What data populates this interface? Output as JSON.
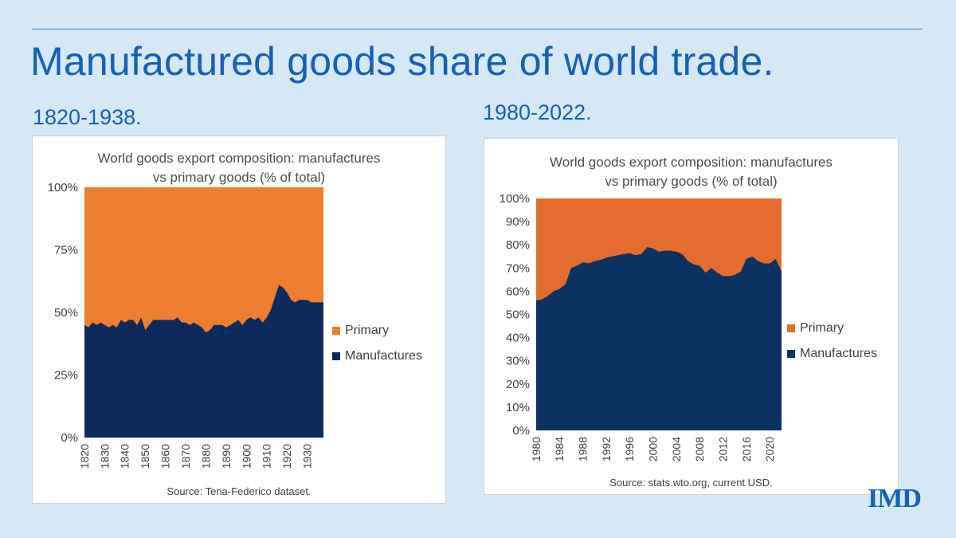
{
  "page": {
    "title": "Manufactured goods share of world trade.",
    "logo": "IMD",
    "colors": {
      "background": "#d6e8f5",
      "accent": "#1560b8"
    }
  },
  "left": {
    "subtitle": "1820-1938."
  },
  "right": {
    "subtitle": "1980-2022."
  },
  "chart_data": [
    {
      "type": "area",
      "stacked": true,
      "title_line1": "World goods export composition: manufactures",
      "title_line2": "vs primary goods (% of total)",
      "source": "Source: Tena-Federico dataset.",
      "x_start": 1820,
      "x_end": 1938,
      "ylim": [
        0,
        100
      ],
      "yticks": [
        0,
        25,
        50,
        75,
        100
      ],
      "ytick_labels": [
        "0%",
        "25%",
        "50%",
        "75%",
        "100%"
      ],
      "xticks": [
        1820,
        1830,
        1840,
        1850,
        1860,
        1870,
        1880,
        1890,
        1900,
        1910,
        1920,
        1930
      ],
      "legend_position": "right",
      "series": [
        {
          "name": "Primary",
          "color": "#ed7d31",
          "complement_of": "Manufactures"
        },
        {
          "name": "Manufactures",
          "color": "#0e2a5c"
        }
      ],
      "x": [
        1820,
        1822,
        1824,
        1826,
        1828,
        1830,
        1832,
        1834,
        1836,
        1838,
        1840,
        1842,
        1844,
        1846,
        1848,
        1850,
        1852,
        1854,
        1856,
        1858,
        1860,
        1862,
        1864,
        1866,
        1868,
        1870,
        1872,
        1874,
        1876,
        1878,
        1880,
        1882,
        1884,
        1886,
        1888,
        1890,
        1892,
        1894,
        1896,
        1898,
        1900,
        1902,
        1904,
        1906,
        1908,
        1910,
        1912,
        1914,
        1916,
        1918,
        1920,
        1922,
        1924,
        1926,
        1928,
        1930,
        1932,
        1934,
        1936,
        1938
      ],
      "manufactures": [
        45,
        44,
        46,
        45,
        46,
        45,
        44,
        45,
        44,
        47,
        46,
        47,
        47,
        45,
        48,
        43,
        45,
        47,
        47,
        47,
        47,
        47,
        47,
        48,
        46,
        46,
        45,
        46,
        45,
        44,
        42,
        43,
        45,
        45,
        45,
        44,
        45,
        46,
        47,
        45,
        47,
        48,
        47,
        48,
        46,
        48,
        51,
        56,
        61,
        60,
        58,
        55,
        54,
        55,
        55,
        55,
        54,
        54,
        54,
        54
      ]
    },
    {
      "type": "area",
      "stacked": true,
      "title_line1": "World goods export composition: manufactures",
      "title_line2": "vs primary goods (% of total)",
      "source": "Source: stats.wto.org, current USD.",
      "x_start": 1980,
      "x_end": 2022,
      "ylim": [
        0,
        100
      ],
      "yticks": [
        0,
        10,
        20,
        30,
        40,
        50,
        60,
        70,
        80,
        90,
        100
      ],
      "ytick_labels": [
        "0%",
        "10%",
        "20%",
        "30%",
        "40%",
        "50%",
        "60%",
        "70%",
        "80%",
        "90%",
        "100%"
      ],
      "xticks": [
        1980,
        1984,
        1988,
        1992,
        1996,
        2000,
        2004,
        2008,
        2012,
        2016,
        2020
      ],
      "legend_position": "right",
      "series": [
        {
          "name": "Primary",
          "color": "#e46c2e",
          "complement_of": "Manufactures"
        },
        {
          "name": "Manufactures",
          "color": "#0b3260"
        }
      ],
      "x": [
        1980,
        1981,
        1982,
        1983,
        1984,
        1985,
        1986,
        1987,
        1988,
        1989,
        1990,
        1991,
        1992,
        1993,
        1994,
        1995,
        1996,
        1997,
        1998,
        1999,
        2000,
        2001,
        2002,
        2003,
        2004,
        2005,
        2006,
        2007,
        2008,
        2009,
        2010,
        2011,
        2012,
        2013,
        2014,
        2015,
        2016,
        2017,
        2018,
        2019,
        2020,
        2021,
        2022
      ],
      "manufactures": [
        56,
        56.5,
        58,
        60,
        61,
        63,
        70,
        71,
        72.5,
        72,
        73,
        73.5,
        74.5,
        75,
        75.5,
        76,
        76.5,
        75.5,
        76,
        79,
        78.5,
        77,
        77.5,
        77.5,
        77,
        76,
        73,
        71.5,
        71,
        68,
        70,
        68,
        66.5,
        66.5,
        67,
        68.5,
        74,
        75,
        73,
        72,
        72,
        74,
        68.5
      ]
    }
  ]
}
